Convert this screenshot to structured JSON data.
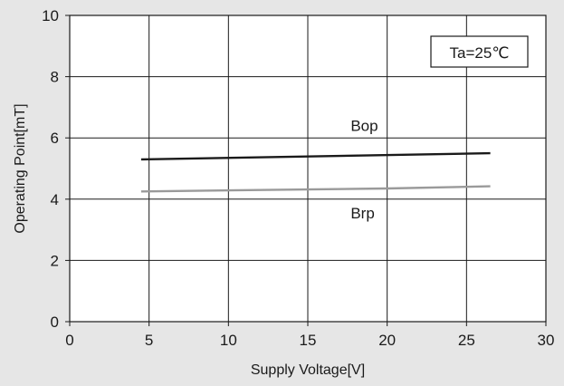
{
  "chart_data": {
    "type": "line",
    "title": "",
    "xlabel": "Supply Voltage[V]",
    "ylabel": "Operating Point[mT]",
    "xlim": [
      0,
      30
    ],
    "ylim": [
      0,
      10
    ],
    "x_ticks": [
      0,
      5,
      10,
      15,
      20,
      25,
      30
    ],
    "y_ticks": [
      0,
      2,
      4,
      6,
      8,
      10
    ],
    "x_tick_labels": [
      "0",
      "5",
      "10",
      "15",
      "20",
      "25",
      "30"
    ],
    "y_tick_labels": [
      "0",
      "2",
      "4",
      "6",
      "8",
      "10"
    ],
    "grid": true,
    "legend": "none",
    "annotation_box": "Ta=25℃",
    "series": [
      {
        "name": "Bop",
        "color": "#1a1a1a",
        "x": [
          4.5,
          26.5
        ],
        "y": [
          5.3,
          5.5
        ],
        "label_at": [
          17.7,
          6.4
        ]
      },
      {
        "name": "Brp",
        "color": "#9a9a9a",
        "x": [
          4.5,
          20,
          26.5
        ],
        "y": [
          4.25,
          4.35,
          4.42
        ],
        "label_at": [
          17.7,
          3.55
        ]
      }
    ]
  }
}
